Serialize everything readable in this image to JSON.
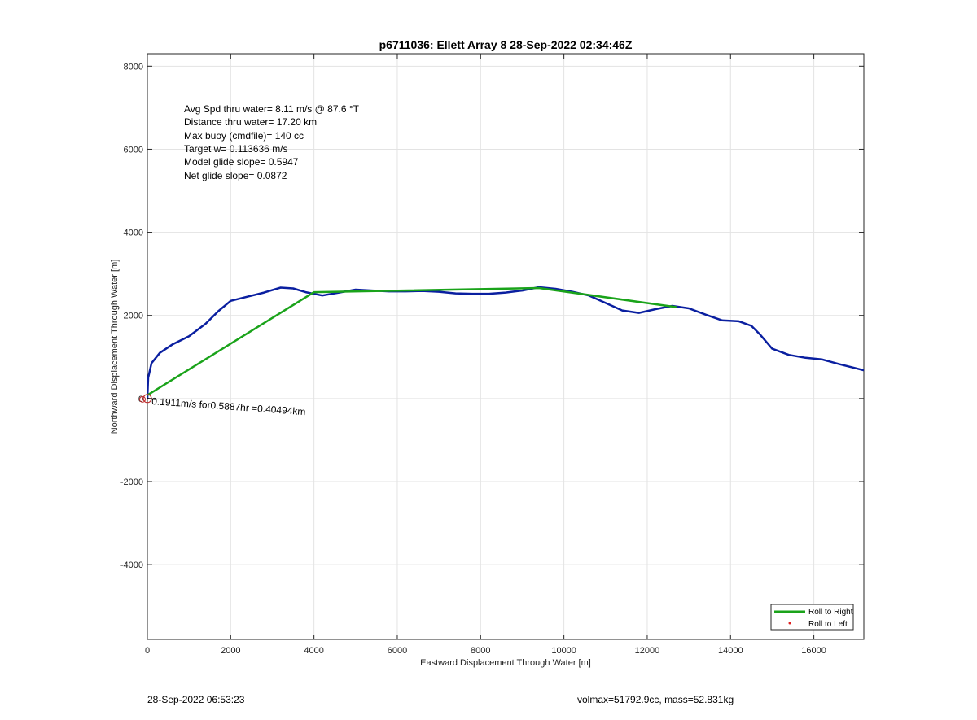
{
  "chart_data": {
    "type": "line",
    "title": "p6711036: Ellett Array 8 28-Sep-2022 02:34:46Z",
    "xlabel": "Eastward Displacement Through Water [m]",
    "ylabel": "Northward Displacement Through Water [m]",
    "xlim": [
      0,
      17200
    ],
    "ylim": [
      -5800,
      8300
    ],
    "xticks": [
      0,
      2000,
      4000,
      6000,
      8000,
      10000,
      12000,
      14000,
      16000
    ],
    "yticks": [
      -4000,
      -2000,
      0,
      2000,
      4000,
      6000,
      8000
    ],
    "grid": true,
    "legend_position": "bottom-right",
    "legend": [
      "Roll to Right",
      "Roll to Left"
    ],
    "annotations": [
      "Avg Spd thru water=  8.11 m/s @  87.6 °T",
      "Distance thru water= 17.20 km",
      "Max buoy (cmdfile)= 140 cc",
      "Target w= 0.113636 m/s",
      "Model glide slope= 0.5947",
      "Net glide slope= 0.0872"
    ],
    "current_label": "0.1911m/s for0.5887hr =0.40494km",
    "series": [
      {
        "name": "Roll to Right",
        "color": "#1aa31a",
        "x": [
          0,
          4000,
          9400,
          12700
        ],
        "y": [
          80,
          2560,
          2660,
          2200
        ]
      },
      {
        "color": "#0a1fa0",
        "x": [
          0,
          20,
          100,
          300,
          600,
          1000,
          1400,
          1700,
          2000,
          2400,
          2800,
          3200,
          3500,
          3800,
          4200,
          4600,
          5000,
          5400,
          5800,
          6200,
          6600,
          7000,
          7400,
          7800,
          8200,
          8600,
          9000,
          9400,
          9800,
          10200,
          10600,
          11000,
          11400,
          11800,
          12200,
          12600,
          13000,
          13400,
          13800,
          14200,
          14500,
          14700,
          15000,
          15400,
          15800,
          16200,
          16600,
          17000,
          17200
        ],
        "y": [
          0,
          500,
          850,
          1100,
          1300,
          1500,
          1800,
          2100,
          2350,
          2450,
          2550,
          2670,
          2650,
          2560,
          2480,
          2550,
          2620,
          2600,
          2580,
          2580,
          2590,
          2570,
          2530,
          2520,
          2520,
          2550,
          2600,
          2680,
          2640,
          2570,
          2480,
          2300,
          2120,
          2060,
          2150,
          2230,
          2170,
          2020,
          1880,
          1860,
          1750,
          1550,
          1200,
          1050,
          980,
          940,
          830,
          730,
          680
        ]
      }
    ]
  },
  "footer": {
    "left": "28-Sep-2022 06:53:23",
    "right": "volmax=51792.9cc, mass=52.831kg"
  },
  "colors": {
    "track": "#0a1fa0",
    "roll_right": "#1aa31a",
    "roll_left": "#e02020",
    "grid": "#e3e3e3"
  }
}
